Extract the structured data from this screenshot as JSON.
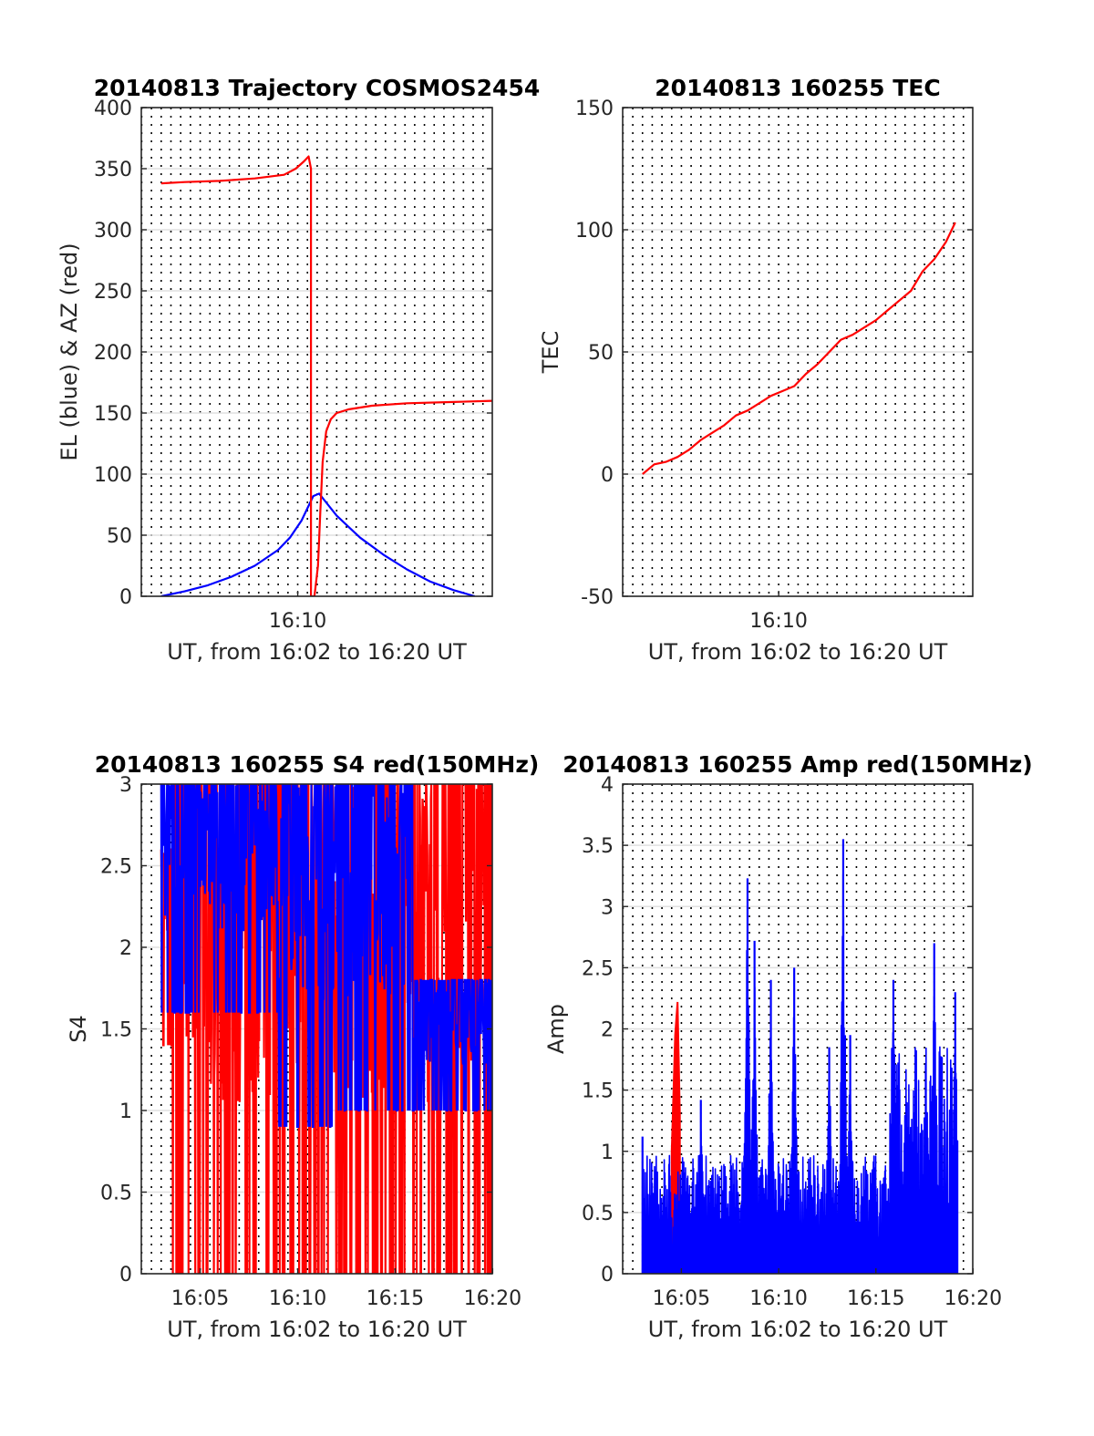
{
  "chart_data": [
    {
      "type": "line",
      "title": "20140813 Trajectory COSMOS2454",
      "xlabel": "UT, from 16:02 to 16:20 UT",
      "ylabel": "EL (blue) & AZ (red)",
      "xlim": [
        16.033,
        16.333
      ],
      "ylim": [
        0,
        400
      ],
      "yticks": [
        0,
        50,
        100,
        150,
        200,
        250,
        300,
        350,
        400
      ],
      "xtick_values": [
        16.1667
      ],
      "xtick_labels": [
        "16:10"
      ],
      "grid": "dotted vertical lines every 30 s, solid horizontal lines at y ticks",
      "series": [
        {
          "color": "#0000ff",
          "x": [
            16.05,
            16.07,
            16.09,
            16.11,
            16.13,
            16.15,
            16.16,
            16.17,
            16.175,
            16.18,
            16.185,
            16.19,
            16.2,
            16.22,
            16.24,
            16.26,
            16.28,
            16.3,
            16.318
          ],
          "y": [
            0,
            4,
            9,
            16,
            25,
            38,
            48,
            62,
            72,
            82,
            84,
            78,
            66,
            48,
            34,
            22,
            12,
            5,
            0
          ]
        },
        {
          "color": "#ff0000",
          "x": [
            16.05,
            16.07,
            16.1,
            16.13,
            16.155,
            16.165,
            16.172,
            16.176,
            16.178,
            16.178,
            16.181,
            16.184,
            16.186,
            16.188,
            16.191,
            16.195,
            16.2,
            16.21,
            16.23,
            16.26,
            16.3,
            16.333
          ],
          "y": [
            338,
            339,
            340,
            342,
            345,
            350,
            356,
            360,
            350,
            0,
            0,
            25,
            70,
            110,
            135,
            145,
            150,
            153,
            156,
            158,
            159,
            160
          ]
        }
      ]
    },
    {
      "type": "line",
      "title": "20140813 160255 TEC",
      "xlabel": "UT, from 16:02 to 16:20 UT",
      "ylabel": "TEC",
      "xlim": [
        16.033,
        16.333
      ],
      "ylim": [
        -50,
        150
      ],
      "yticks": [
        -50,
        0,
        50,
        100,
        150
      ],
      "xtick_values": [
        16.1667
      ],
      "xtick_labels": [
        "16:10"
      ],
      "grid": "dotted vertical lines every 30 s, solid horizontal lines at y ticks",
      "series": [
        {
          "color": "#ff0000",
          "x": [
            16.05,
            16.06,
            16.07,
            16.08,
            16.09,
            16.1,
            16.11,
            16.12,
            16.13,
            16.14,
            16.15,
            16.16,
            16.17,
            16.18,
            16.19,
            16.2,
            16.21,
            16.22,
            16.23,
            16.24,
            16.25,
            16.26,
            16.27,
            16.28,
            16.29,
            16.3,
            16.31,
            16.318
          ],
          "y": [
            0,
            4,
            5,
            7,
            10,
            14,
            17,
            20,
            24,
            26,
            29,
            32,
            34,
            36,
            41,
            45,
            50,
            55,
            57,
            60,
            63,
            67,
            71,
            75,
            83,
            88,
            95,
            103
          ]
        }
      ]
    },
    {
      "type": "line",
      "title": "20140813 160255 S4 red(150MHz)",
      "xlabel": "UT, from 16:02 to 16:20 UT",
      "ylabel": "S4",
      "xlim": [
        16.033,
        16.333
      ],
      "ylim": [
        0,
        3
      ],
      "yticks": [
        0,
        0.5,
        1,
        1.5,
        2,
        2.5,
        3
      ],
      "xtick_values": [
        16.0833,
        16.1667,
        16.25,
        16.3333
      ],
      "xtick_labels": [
        "16:05",
        "16:10",
        "16:15",
        "16:20"
      ],
      "grid": "dotted vertical lines every 30 s, solid horizontal lines at y ticks",
      "series": [
        {
          "color": "#ff0000",
          "style": "spiky, mostly saturated at 3 with frequent drops to 0; dense near the end",
          "segments": [
            {
              "x0": 16.05,
              "x1": 16.06,
              "low": 1.4,
              "high": 2.6
            },
            {
              "x0": 16.06,
              "x1": 16.25,
              "low": 0.0,
              "high": 3.0
            },
            {
              "x0": 16.25,
              "x1": 16.333,
              "low": 0.0,
              "high": 3.0
            }
          ]
        },
        {
          "color": "#0000ff",
          "style": "spiky, mostly between 1.5 and 3, settling to 1.0–1.8 after 16:16",
          "segments": [
            {
              "x0": 16.05,
              "x1": 16.15,
              "low": 1.6,
              "high": 3.0
            },
            {
              "x0": 16.15,
              "x1": 16.2,
              "low": 0.9,
              "high": 3.0
            },
            {
              "x0": 16.2,
              "x1": 16.265,
              "low": 1.0,
              "high": 3.0
            },
            {
              "x0": 16.265,
              "x1": 16.333,
              "low": 1.0,
              "high": 1.8
            }
          ]
        }
      ]
    },
    {
      "type": "line",
      "title": "20140813 160255 Amp red(150MHz)",
      "xlabel": "UT, from 16:02 to 16:20 UT",
      "ylabel": "Amp",
      "xlim": [
        16.033,
        16.333
      ],
      "ylim": [
        0,
        4
      ],
      "yticks": [
        0,
        0.5,
        1,
        1.5,
        2,
        2.5,
        3,
        3.5,
        4
      ],
      "xtick_values": [
        16.0833,
        16.1667,
        16.25,
        16.3333
      ],
      "xtick_labels": [
        "16:05",
        "16:10",
        "16:15",
        "16:20"
      ],
      "grid": "dotted vertical lines every 30 s, solid horizontal lines at y ticks",
      "series": [
        {
          "color": "#ff0000",
          "style": "spike",
          "x": [
            16.075,
            16.078,
            16.08,
            16.082
          ],
          "y": [
            1.0,
            1.95,
            2.22,
            1.3
          ]
        },
        {
          "color": "#0000ff",
          "style": "dense noise filled from 0",
          "peaks": [
            {
              "x": 16.05,
              "y": 1.12
            },
            {
              "x": 16.1,
              "y": 1.42
            },
            {
              "x": 16.14,
              "y": 3.23
            },
            {
              "x": 16.146,
              "y": 2.72
            },
            {
              "x": 16.16,
              "y": 2.4
            },
            {
              "x": 16.18,
              "y": 2.5
            },
            {
              "x": 16.21,
              "y": 1.85
            },
            {
              "x": 16.222,
              "y": 3.55
            },
            {
              "x": 16.228,
              "y": 1.95
            },
            {
              "x": 16.265,
              "y": 2.4
            },
            {
              "x": 16.3,
              "y": 2.7
            },
            {
              "x": 16.318,
              "y": 2.3
            }
          ]
        }
      ]
    }
  ]
}
